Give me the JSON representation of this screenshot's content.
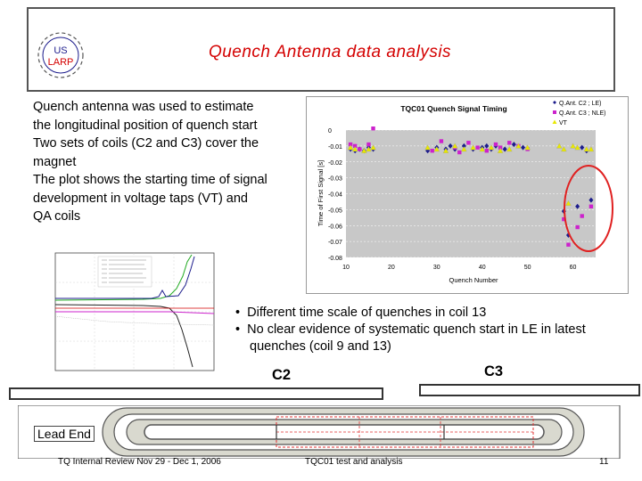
{
  "header": {
    "logo_text_top": "US",
    "logo_text_bottom": "LARP",
    "title": "Quench Antenna data analysis"
  },
  "intro_lines": [
    "Quench antenna was used to estimate",
    "the longitudinal position of quench start",
    "Two sets of coils (C2 and C3) cover the",
    "magnet",
    "The plot shows the starting time of signal",
    "development in voltage taps (VT) and",
    "QA coils"
  ],
  "bullets": [
    "Different time scale of quenches in coil 13",
    "No clear evidence of systematic quench start in LE in latest quenches (coil 9 and 13)"
  ],
  "coil_labels": {
    "c2": "C2",
    "c3": "C3"
  },
  "magnet": {
    "lead_end_label": "Lead End"
  },
  "footer": {
    "left": "TQ Internal Review Nov 29 - Dec 1, 2006",
    "center": "TQC01 test and analysis",
    "page": "11"
  },
  "colors": {
    "title_red": "#d40000",
    "series_blue": "#1c1c8c",
    "series_magenta": "#cc22cc",
    "series_yellow": "#e8e800",
    "highlight_circle": "#e02020"
  },
  "chart_data": {
    "type": "scatter",
    "title": "TQC01 Quench Signal Timing",
    "xlabel": "Quench Number",
    "ylabel": "Time of First Signal [s]",
    "xlim": [
      10,
      65
    ],
    "ylim": [
      -0.08,
      0
    ],
    "x_ticks": [
      "10",
      "20",
      "30",
      "40",
      "50",
      "60"
    ],
    "y_ticks": [
      "0",
      "-0.01",
      "-0.02",
      "-0.03",
      "-0.04",
      "-0.05",
      "-0.06",
      "-0.07",
      "-0.08"
    ],
    "legend": [
      "Q.Ant. C2 ; LE)",
      "Q.Ant. C3 ; NLE)",
      "VT"
    ],
    "legend_position": "top-right",
    "highlight": "ellipse around quenches 56-64",
    "series": [
      {
        "name": "Q.Ant. C2 ; LE)",
        "marker": "diamond",
        "color": "#1c1c8c",
        "points": [
          [
            11,
            -0.012
          ],
          [
            12,
            -0.013
          ],
          [
            13,
            -0.012
          ],
          [
            14,
            -0.013
          ],
          [
            15,
            -0.011
          ],
          [
            16,
            -0.012
          ],
          [
            28,
            -0.013
          ],
          [
            30,
            -0.011
          ],
          [
            32,
            -0.012
          ],
          [
            33,
            -0.01
          ],
          [
            34,
            -0.012
          ],
          [
            36,
            -0.01
          ],
          [
            38,
            -0.012
          ],
          [
            40,
            -0.011
          ],
          [
            41,
            -0.01
          ],
          [
            42,
            -0.012
          ],
          [
            43,
            -0.01
          ],
          [
            45,
            -0.012
          ],
          [
            47,
            -0.009
          ],
          [
            49,
            -0.011
          ],
          [
            58,
            -0.051
          ],
          [
            59,
            -0.066
          ],
          [
            61,
            -0.048
          ],
          [
            62,
            -0.011
          ],
          [
            63,
            -0.013
          ],
          [
            64,
            -0.044
          ]
        ]
      },
      {
        "name": "Q.Ant. C3 ; NLE)",
        "marker": "square",
        "color": "#cc22cc",
        "points": [
          [
            11,
            -0.009
          ],
          [
            12,
            -0.01
          ],
          [
            13,
            -0.012
          ],
          [
            15,
            -0.009
          ],
          [
            16,
            0.001
          ],
          [
            29,
            -0.013
          ],
          [
            31,
            -0.007
          ],
          [
            34,
            -0.011
          ],
          [
            35,
            -0.014
          ],
          [
            37,
            -0.008
          ],
          [
            39,
            -0.011
          ],
          [
            41,
            -0.013
          ],
          [
            43,
            -0.009
          ],
          [
            44,
            -0.011
          ],
          [
            46,
            -0.008
          ],
          [
            48,
            -0.01
          ],
          [
            50,
            -0.012
          ],
          [
            58,
            -0.056
          ],
          [
            59,
            -0.072
          ],
          [
            61,
            -0.061
          ],
          [
            62,
            -0.054
          ],
          [
            64,
            -0.048
          ]
        ]
      },
      {
        "name": "VT",
        "marker": "triangle",
        "color": "#e8e800",
        "points": [
          [
            11,
            -0.011
          ],
          [
            12,
            -0.012
          ],
          [
            14,
            -0.013
          ],
          [
            15,
            -0.012
          ],
          [
            16,
            -0.011
          ],
          [
            28,
            -0.011
          ],
          [
            30,
            -0.012
          ],
          [
            32,
            -0.013
          ],
          [
            34,
            -0.01
          ],
          [
            36,
            -0.012
          ],
          [
            38,
            -0.011
          ],
          [
            40,
            -0.012
          ],
          [
            42,
            -0.011
          ],
          [
            44,
            -0.013
          ],
          [
            46,
            -0.012
          ],
          [
            48,
            -0.01
          ],
          [
            50,
            -0.011
          ],
          [
            57,
            -0.01
          ],
          [
            58,
            -0.012
          ],
          [
            59,
            -0.046
          ],
          [
            60,
            -0.01
          ],
          [
            61,
            -0.011
          ],
          [
            63,
            -0.012
          ],
          [
            64,
            -0.012
          ]
        ]
      }
    ]
  }
}
